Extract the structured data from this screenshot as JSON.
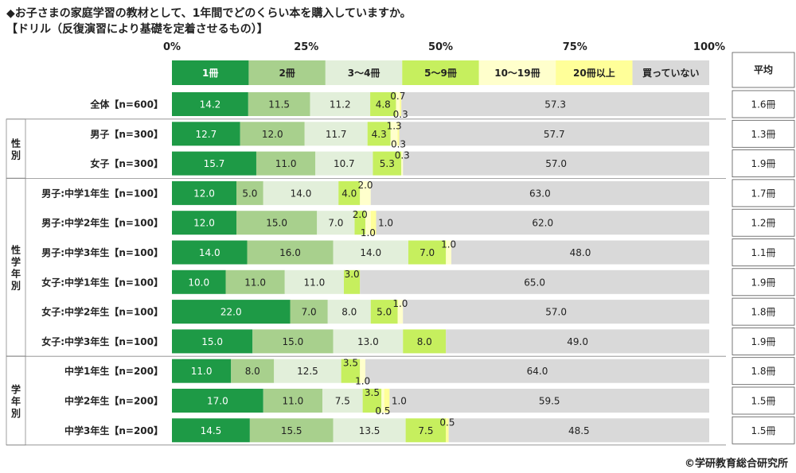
{
  "title_line1": "◆お子さまの家庭学習の教材として、1年間でどのくらい本を購入していますか。",
  "title_line2": "【ドリル（反復演習により基礎を定着させるもの）】",
  "copyright": "©学研教育総合研究所",
  "chart_data": {
    "type": "bar",
    "orientation": "horizontal",
    "stacked": true,
    "percent_axis": {
      "ticks": [
        0,
        25,
        50,
        75,
        100
      ],
      "labels": [
        "0%",
        "25%",
        "50%",
        "75%",
        "100%"
      ],
      "min": 0,
      "max": 100
    },
    "legend": [
      {
        "name": "1冊",
        "color": "#1e9a46",
        "text_color": "#ffffff"
      },
      {
        "name": "2冊",
        "color": "#a8d08d",
        "text_color": "#222222"
      },
      {
        "name": "3～4冊",
        "color": "#e2efda",
        "text_color": "#222222"
      },
      {
        "name": "5～9冊",
        "color": "#c6ef5e",
        "text_color": "#222222"
      },
      {
        "name": "10～19冊",
        "color": "#ffffcc",
        "text_color": "#222222"
      },
      {
        "name": "20冊以上",
        "color": "#ffff99",
        "text_color": "#222222"
      },
      {
        "name": "買っていない",
        "color": "#d9d9d9",
        "text_color": "#222222"
      }
    ],
    "average_header": "平均",
    "groups": [
      {
        "label": "",
        "rows": [
          0
        ]
      },
      {
        "label": "性別",
        "rows": [
          1,
          2
        ]
      },
      {
        "label": "性学年別",
        "rows": [
          3,
          4,
          5,
          6,
          7,
          8
        ]
      },
      {
        "label": "学年別",
        "rows": [
          9,
          10,
          11
        ]
      }
    ],
    "rows": [
      {
        "label": "全体【n=600】",
        "values": [
          14.2,
          11.5,
          11.2,
          4.8,
          0.7,
          0.3,
          57.3
        ],
        "average": "1.6冊"
      },
      {
        "label": "男子【n=300】",
        "values": [
          12.7,
          12.0,
          11.7,
          4.3,
          1.3,
          0.3,
          57.7
        ],
        "average": "1.3冊"
      },
      {
        "label": "女子【n=300】",
        "values": [
          15.7,
          11.0,
          10.7,
          5.3,
          0.3,
          0,
          57.0
        ],
        "average": "1.9冊"
      },
      {
        "label": "男子:中学1年生【n=100】",
        "values": [
          12.0,
          5.0,
          14.0,
          4.0,
          2.0,
          0,
          63.0
        ],
        "average": "1.7冊"
      },
      {
        "label": "男子:中学2年生【n=100】",
        "values": [
          12.0,
          15.0,
          7.0,
          2.0,
          1.0,
          1.0,
          62.0
        ],
        "average": "1.2冊"
      },
      {
        "label": "男子:中学3年生【n=100】",
        "values": [
          14.0,
          16.0,
          14.0,
          7.0,
          1.0,
          0,
          48.0
        ],
        "average": "1.1冊"
      },
      {
        "label": "女子:中学1年生【n=100】",
        "values": [
          10.0,
          11.0,
          11.0,
          3.0,
          0,
          0,
          65.0
        ],
        "average": "1.9冊"
      },
      {
        "label": "女子:中学2年生【n=100】",
        "values": [
          22.0,
          7.0,
          8.0,
          5.0,
          1.0,
          0,
          57.0
        ],
        "average": "1.8冊"
      },
      {
        "label": "女子:中学3年生【n=100】",
        "values": [
          15.0,
          15.0,
          13.0,
          8.0,
          0,
          0,
          49.0
        ],
        "average": "1.9冊"
      },
      {
        "label": "中学1年生【n=200】",
        "values": [
          11.0,
          8.0,
          12.5,
          3.5,
          1.0,
          0,
          64.0
        ],
        "average": "1.8冊"
      },
      {
        "label": "中学2年生【n=200】",
        "values": [
          17.0,
          11.0,
          7.5,
          3.5,
          0.5,
          1.0,
          59.5
        ],
        "average": "1.5冊"
      },
      {
        "label": "中学3年生【n=200】",
        "values": [
          14.5,
          15.5,
          13.5,
          7.5,
          0,
          0.5,
          48.5
        ],
        "average": "1.5冊"
      }
    ]
  }
}
